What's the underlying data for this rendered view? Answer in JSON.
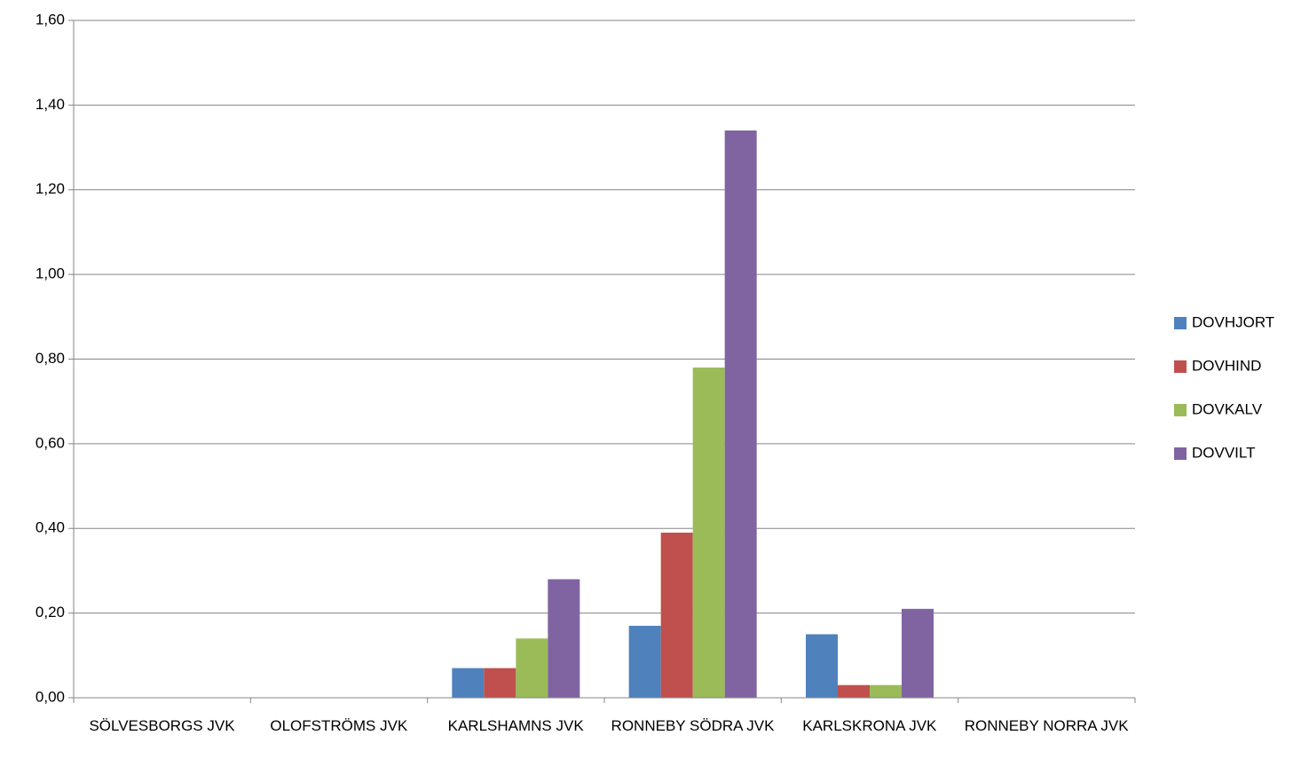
{
  "chart_data": {
    "type": "bar",
    "categories": [
      "SÖLVESBORGS JVK",
      "OLOFSTRÖMS JVK",
      "KARLSHAMNS JVK",
      "RONNEBY SÖDRA JVK",
      "KARLSKRONA JVK",
      "RONNEBY NORRA JVK"
    ],
    "series": [
      {
        "name": "DOVHJORT",
        "color": "#4f81bd",
        "values": [
          0,
          0,
          0.07,
          0.17,
          0.15,
          0
        ]
      },
      {
        "name": "DOVHIND",
        "color": "#c0504d",
        "values": [
          0,
          0,
          0.07,
          0.39,
          0.03,
          0
        ]
      },
      {
        "name": "DOVKALV",
        "color": "#9bbb59",
        "values": [
          0,
          0,
          0.14,
          0.78,
          0.03,
          0
        ]
      },
      {
        "name": "DOVVILT",
        "color": "#8064a2",
        "values": [
          0,
          0,
          0.28,
          1.34,
          0.21,
          0
        ]
      }
    ],
    "ylim": [
      0,
      1.6
    ],
    "yticks": [
      {
        "value": 0,
        "label": "0,00"
      },
      {
        "value": 0.2,
        "label": "0,20"
      },
      {
        "value": 0.4,
        "label": "0,40"
      },
      {
        "value": 0.6,
        "label": "0,60"
      },
      {
        "value": 0.8,
        "label": "0,80"
      },
      {
        "value": 1.0,
        "label": "1,00"
      },
      {
        "value": 1.2,
        "label": "1,20"
      },
      {
        "value": 1.4,
        "label": "1,40"
      },
      {
        "value": 1.6,
        "label": "1,60"
      }
    ],
    "grid": true,
    "legend": "right"
  }
}
